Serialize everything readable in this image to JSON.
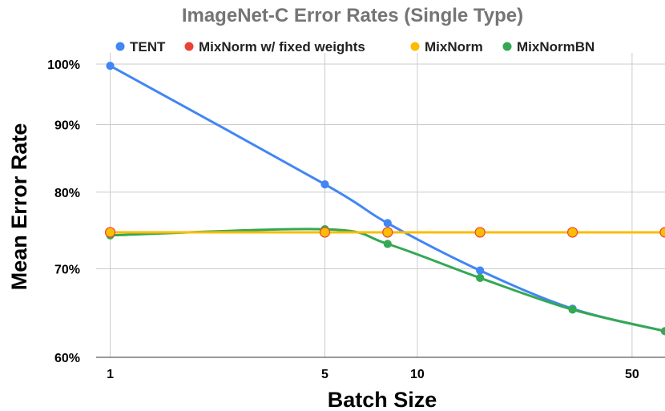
{
  "chart_data": {
    "type": "line",
    "title": "ImageNet-C Error Rates (Single Type)",
    "xlabel": "Batch Size",
    "ylabel": "Mean Error Rate",
    "x_scale": "log",
    "y_scale": "log",
    "xlim": [
      0.9,
      64
    ],
    "ylim": [
      60,
      100
    ],
    "x_ticks": [
      {
        "value": 1,
        "label": "1"
      },
      {
        "value": 5,
        "label": "5"
      },
      {
        "value": 10,
        "label": "10"
      },
      {
        "value": 50,
        "label": "50"
      }
    ],
    "y_ticks": [
      {
        "value": 60,
        "label": "60%"
      },
      {
        "value": 70,
        "label": "70%"
      },
      {
        "value": 80,
        "label": "80%"
      },
      {
        "value": 90,
        "label": "90%"
      },
      {
        "value": 100,
        "label": "100%"
      }
    ],
    "grid": true,
    "legend_position": "top",
    "series": [
      {
        "name": "TENT",
        "color": "#4285f4",
        "marker_stroke": "#4285f4",
        "x": [
          1,
          5,
          8,
          16,
          32,
          64
        ],
        "y": [
          99.7,
          81.1,
          75.8,
          69.8,
          65.3,
          62.8
        ]
      },
      {
        "name": "MixNorm w/ fixed weights",
        "color": "#ea4335",
        "marker_stroke": "#ea4335",
        "x": [
          1,
          5,
          8,
          16,
          32,
          64
        ],
        "y": [
          74.6,
          74.6,
          74.6,
          74.6,
          74.6,
          74.6
        ]
      },
      {
        "name": "MixNorm",
        "color": "#fbbc04",
        "marker_stroke": "#ea4335",
        "x": [
          1,
          5,
          8,
          16,
          32,
          64
        ],
        "y": [
          74.6,
          74.6,
          74.6,
          74.6,
          74.6,
          74.6
        ]
      },
      {
        "name": "MixNormBN",
        "color": "#34a853",
        "marker_stroke": "#34a853",
        "x": [
          1,
          5,
          8,
          16,
          32,
          64
        ],
        "y": [
          74.2,
          75.0,
          73.1,
          68.9,
          65.2,
          62.8
        ]
      }
    ]
  }
}
